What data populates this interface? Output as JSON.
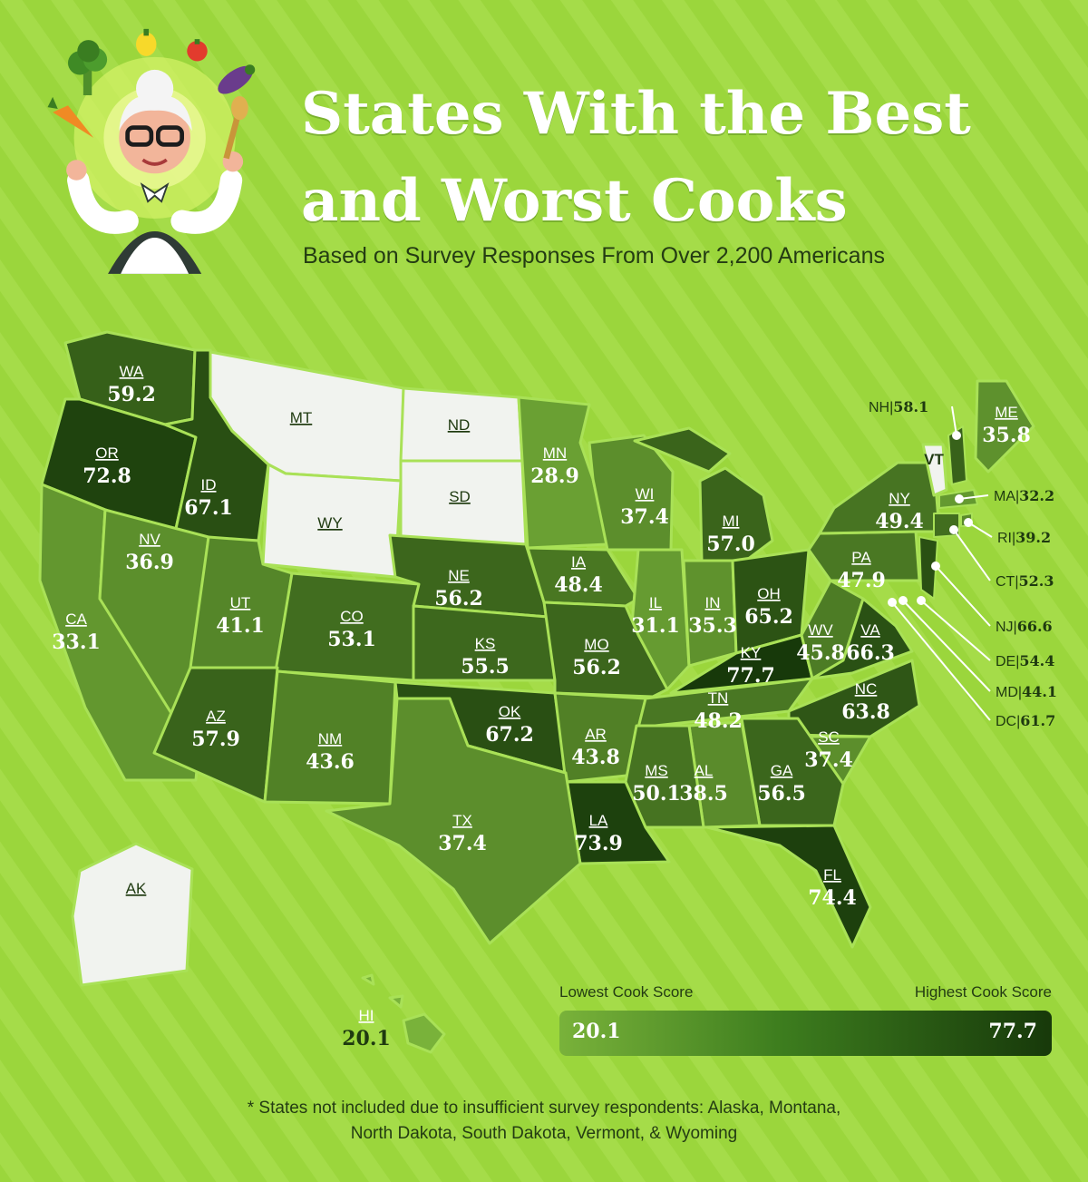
{
  "header": {
    "title_line1": "States With the Best",
    "title_line2": "and Worst Cooks",
    "subtitle": "Based on Survey Responses From Over 2,200 Americans"
  },
  "colors": {
    "background": "#9bd63c",
    "no_data": "#f1f3ef",
    "scale_low": "#79b23a",
    "scale_high": "#17390a"
  },
  "map": {
    "states": [
      {
        "abbr": "WA",
        "score": "59.2"
      },
      {
        "abbr": "OR",
        "score": "72.8"
      },
      {
        "abbr": "ID",
        "score": "67.1"
      },
      {
        "abbr": "MT",
        "score": ""
      },
      {
        "abbr": "ND",
        "score": ""
      },
      {
        "abbr": "SD",
        "score": ""
      },
      {
        "abbr": "WY",
        "score": ""
      },
      {
        "abbr": "MN",
        "score": "28.9"
      },
      {
        "abbr": "WI",
        "score": "37.4"
      },
      {
        "abbr": "MI",
        "score": "57.0"
      },
      {
        "abbr": "CA",
        "score": "33.1"
      },
      {
        "abbr": "NV",
        "score": "36.9"
      },
      {
        "abbr": "UT",
        "score": "41.1"
      },
      {
        "abbr": "CO",
        "score": "53.1"
      },
      {
        "abbr": "NE",
        "score": "56.2"
      },
      {
        "abbr": "IA",
        "score": "48.4"
      },
      {
        "abbr": "IL",
        "score": "31.1"
      },
      {
        "abbr": "IN",
        "score": "35.3"
      },
      {
        "abbr": "OH",
        "score": "65.2"
      },
      {
        "abbr": "KS",
        "score": "55.5"
      },
      {
        "abbr": "MO",
        "score": "56.2"
      },
      {
        "abbr": "KY",
        "score": "77.7"
      },
      {
        "abbr": "WV",
        "score": "45.8"
      },
      {
        "abbr": "VA",
        "score": "66.3"
      },
      {
        "abbr": "PA",
        "score": "47.9"
      },
      {
        "abbr": "NY",
        "score": "49.4"
      },
      {
        "abbr": "ME",
        "score": "35.8"
      },
      {
        "abbr": "VT",
        "score": ""
      },
      {
        "abbr": "AZ",
        "score": "57.9"
      },
      {
        "abbr": "NM",
        "score": "43.6"
      },
      {
        "abbr": "OK",
        "score": "67.2"
      },
      {
        "abbr": "AR",
        "score": "43.8"
      },
      {
        "abbr": "TN",
        "score": "48.2"
      },
      {
        "abbr": "NC",
        "score": "63.8"
      },
      {
        "abbr": "SC",
        "score": "37.4"
      },
      {
        "abbr": "GA",
        "score": "56.5"
      },
      {
        "abbr": "AL",
        "score": "38.5"
      },
      {
        "abbr": "MS",
        "score": "50.1"
      },
      {
        "abbr": "LA",
        "score": "73.9"
      },
      {
        "abbr": "TX",
        "score": "37.4"
      },
      {
        "abbr": "FL",
        "score": "74.4"
      },
      {
        "abbr": "AK",
        "score": ""
      },
      {
        "abbr": "HI",
        "score": "20.1"
      }
    ],
    "callouts": [
      {
        "abbr": "NH",
        "score": "58.1"
      },
      {
        "abbr": "MA",
        "score": "32.2"
      },
      {
        "abbr": "RI",
        "score": "39.2"
      },
      {
        "abbr": "CT",
        "score": "52.3"
      },
      {
        "abbr": "NJ",
        "score": "66.6"
      },
      {
        "abbr": "DE",
        "score": "54.4"
      },
      {
        "abbr": "MD",
        "score": "44.1"
      },
      {
        "abbr": "DC",
        "score": "61.7"
      }
    ]
  },
  "legend": {
    "low_label": "Lowest Cook Score",
    "high_label": "Highest Cook Score",
    "min_value": "20.1",
    "max_value": "77.7"
  },
  "footnote": {
    "line1": "* States not included due to insufficient survey respondents: Alaska, Montana,",
    "line2": "North Dakota, South Dakota, Vermont, & Wyoming"
  }
}
